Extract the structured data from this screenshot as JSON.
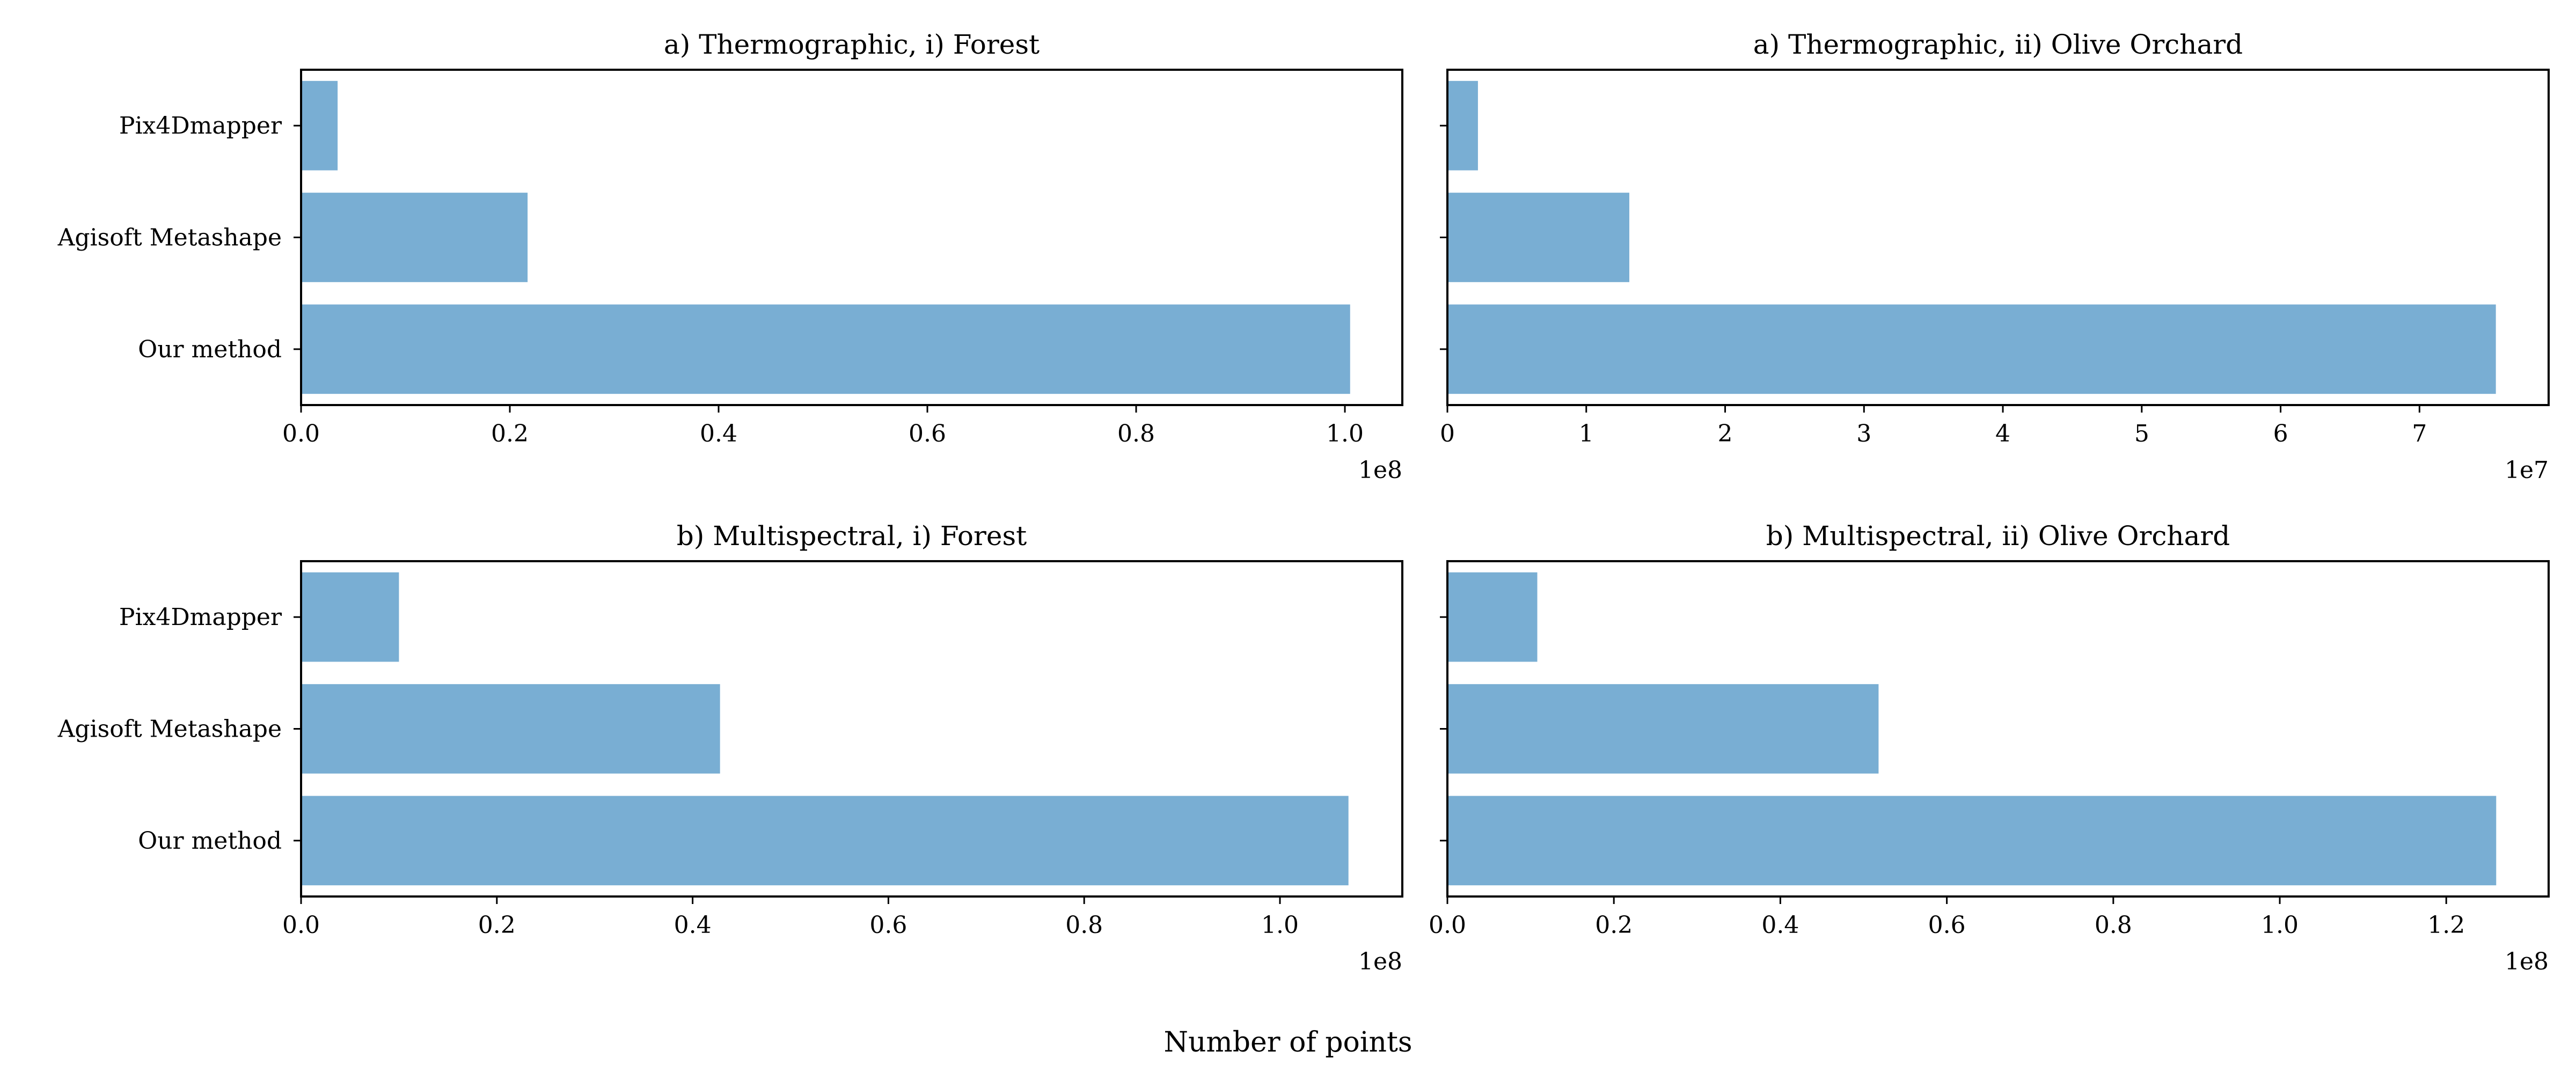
{
  "figure": {
    "xlabel": "Number of points"
  },
  "colors": {
    "bar": "#79aed3",
    "axis": "#000000",
    "background": "#ffffff"
  },
  "chart_data": [
    {
      "type": "bar",
      "orientation": "horizontal",
      "title": "a) Thermographic, i) Forest",
      "categories": [
        "Pix4Dmapper",
        "Agisoft Metashape",
        "Our method"
      ],
      "values": [
        3500000,
        21700000,
        100500000
      ],
      "xlim": [
        0,
        105500000
      ],
      "xticks": [
        0,
        20000000,
        40000000,
        60000000,
        80000000,
        100000000
      ],
      "xtick_labels": [
        "0.0",
        "0.2",
        "0.4",
        "0.6",
        "0.8",
        "1.0"
      ],
      "offset_label": "1e8",
      "show_category_labels": true,
      "grid": false
    },
    {
      "type": "bar",
      "orientation": "horizontal",
      "title": "a) Thermographic, ii) Olive Orchard",
      "categories": [
        "Pix4Dmapper",
        "Agisoft Metashape",
        "Our method"
      ],
      "values": [
        2200000,
        13100000,
        75500000
      ],
      "xlim": [
        0,
        79300000
      ],
      "xticks": [
        0,
        10000000,
        20000000,
        30000000,
        40000000,
        50000000,
        60000000,
        70000000
      ],
      "xtick_labels": [
        "0",
        "1",
        "2",
        "3",
        "4",
        "5",
        "6",
        "7"
      ],
      "offset_label": "1e7",
      "show_category_labels": false,
      "grid": false
    },
    {
      "type": "bar",
      "orientation": "horizontal",
      "title": "b) Multispectral, i) Forest",
      "categories": [
        "Pix4Dmapper",
        "Agisoft Metashape",
        "Our method"
      ],
      "values": [
        10000000,
        42800000,
        107000000
      ],
      "xlim": [
        0,
        112500000
      ],
      "xticks": [
        0,
        20000000,
        40000000,
        60000000,
        80000000,
        100000000
      ],
      "xtick_labels": [
        "0.0",
        "0.2",
        "0.4",
        "0.6",
        "0.8",
        "1.0"
      ],
      "offset_label": "1e8",
      "show_category_labels": true,
      "grid": false
    },
    {
      "type": "bar",
      "orientation": "horizontal",
      "title": "b) Multispectral, ii) Olive Orchard",
      "categories": [
        "Pix4Dmapper",
        "Agisoft Metashape",
        "Our method"
      ],
      "values": [
        10800000,
        51800000,
        126000000
      ],
      "xlim": [
        0,
        132300000
      ],
      "xticks": [
        0,
        20000000,
        40000000,
        60000000,
        80000000,
        100000000,
        120000000
      ],
      "xtick_labels": [
        "0.0",
        "0.2",
        "0.4",
        "0.6",
        "0.8",
        "1.0",
        "1.2"
      ],
      "offset_label": "1e8",
      "show_category_labels": false,
      "grid": false
    }
  ]
}
